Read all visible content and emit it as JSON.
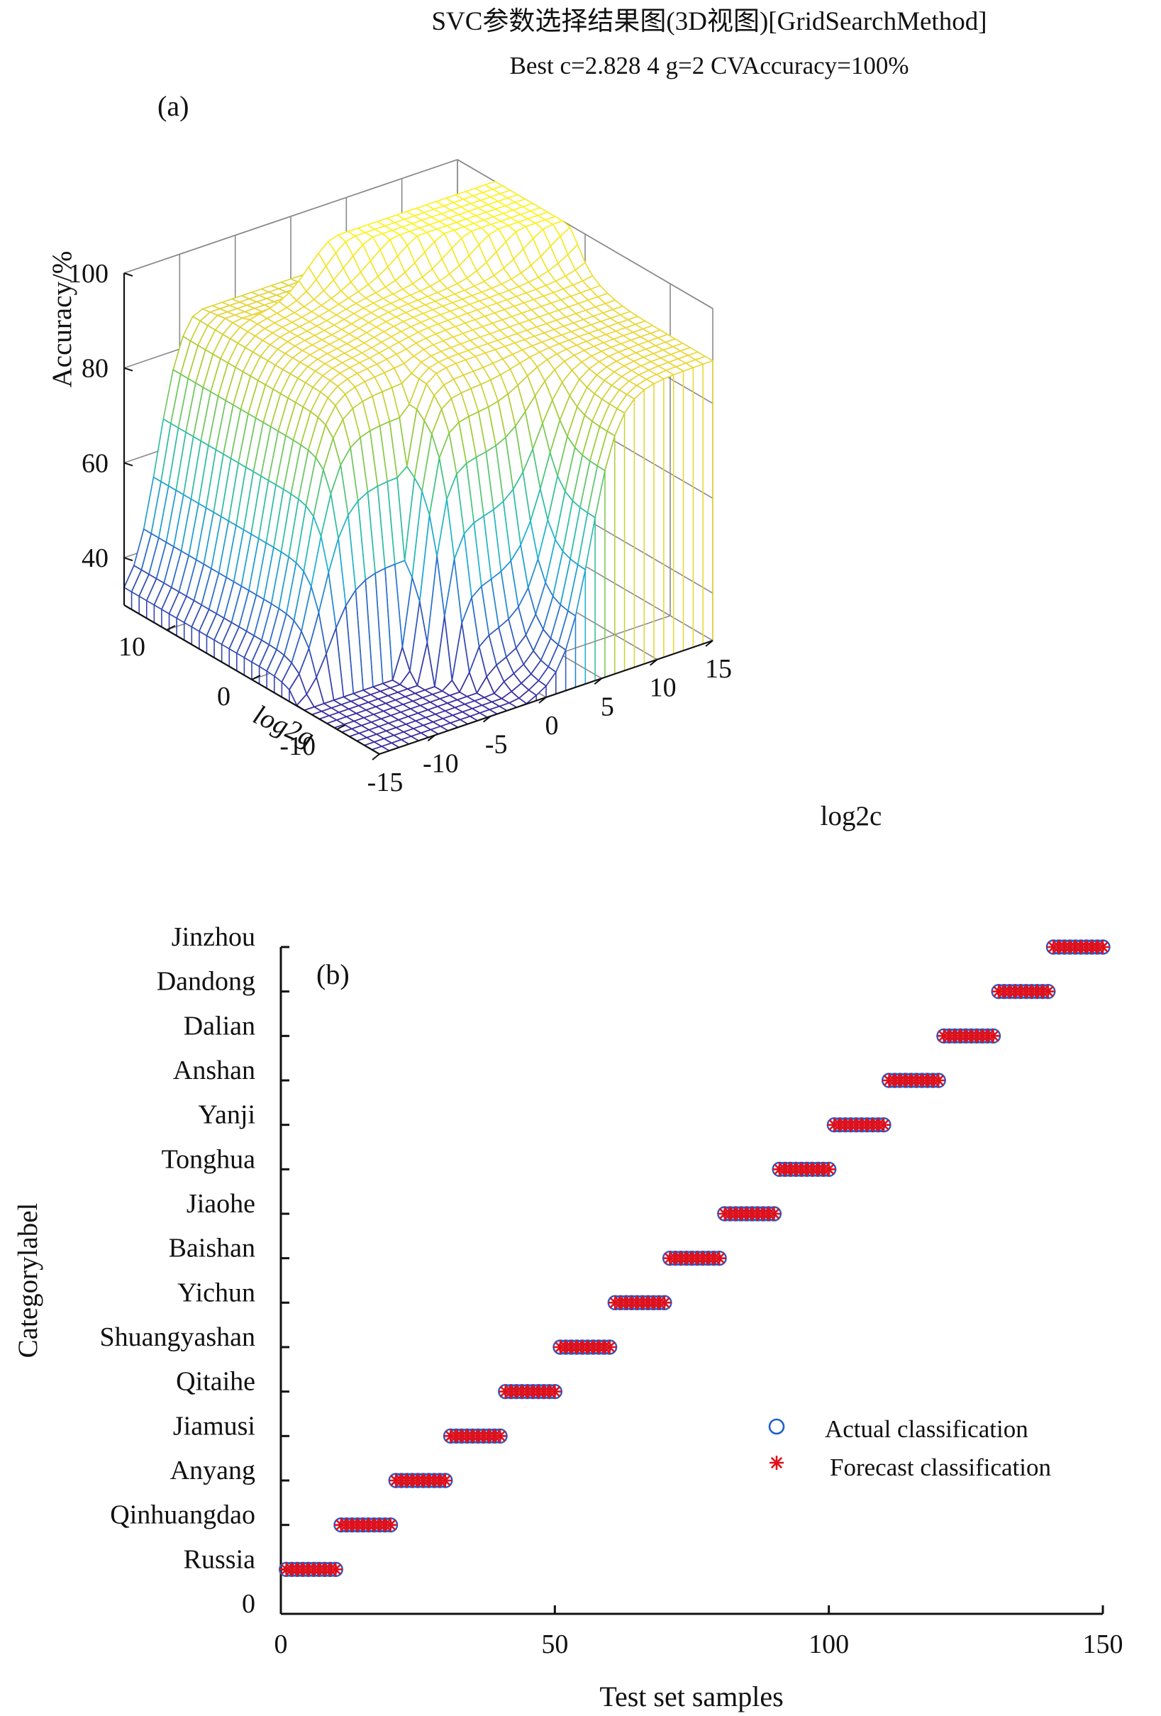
{
  "chart_data": [
    {
      "panel": "(a)",
      "type": "surface",
      "title": "SVC参数选择结果图(3D视图)[GridSearchMethod]",
      "subtitle": "Best c=2.828 4 g=2 CVAccuracy=100%",
      "xlabel": "log2c",
      "ylabel": "log2g",
      "zlabel": "Accuracy/%",
      "x_ticks": [
        -15,
        -10,
        -5,
        0,
        5,
        10,
        15
      ],
      "y_ticks": [
        -10,
        0,
        10
      ],
      "z_ticks": [
        40,
        60,
        80,
        100
      ],
      "xlim": [
        -15,
        15
      ],
      "ylim": [
        -15,
        15
      ],
      "zlim": [
        30,
        100
      ],
      "grid": true,
      "colormap": [
        "#3a2fa0",
        "#2c71cf",
        "#1fb2d6",
        "#3cc48a",
        "#9ccb3a",
        "#e9d63b",
        "#fbf32a"
      ],
      "surface": {
        "best_log2c": 1.5,
        "best_log2g": 1,
        "plateau_accuracy": 89,
        "low_accuracy": 30,
        "peak_accuracy": 100
      }
    },
    {
      "panel": "(b)",
      "type": "scatter",
      "xlabel": "Test set samples",
      "ylabel": "Categorylabel",
      "xlim": [
        0,
        150
      ],
      "ylim": [
        0,
        15
      ],
      "x_ticks": [
        0,
        50,
        100,
        150
      ],
      "y_tick_zero": "0",
      "categories": [
        "Russia",
        "Qinhuangdao",
        "Anyang",
        "Jiamusi",
        "Qitaihe",
        "Shuangyashan",
        "Yichun",
        "Baishan",
        "Jiaohe",
        "Tonghua",
        "Yanji",
        "Anshan",
        "Dalian",
        "Dandong",
        "Jinzhou"
      ],
      "samples_per_class": 10,
      "series": [
        {
          "name": "Actual classification",
          "marker": "circle",
          "color": "#1f5fd0"
        },
        {
          "name": "Forecast classification",
          "marker": "asterisk",
          "color": "#e0101a"
        }
      ],
      "legend_position": "right-middle"
    }
  ]
}
